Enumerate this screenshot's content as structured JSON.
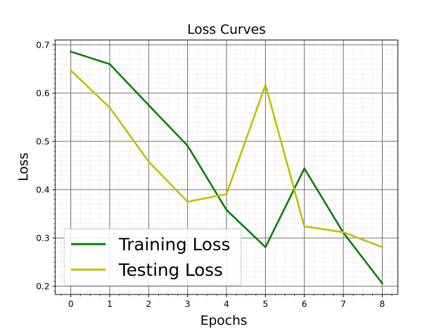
{
  "chart_data": {
    "type": "line",
    "title": "Loss Curves",
    "xlabel": "Epochs",
    "ylabel": "Loss",
    "x": [
      0,
      1,
      2,
      3,
      4,
      5,
      6,
      7,
      8
    ],
    "xlim": [
      -0.4,
      8.4
    ],
    "ylim": [
      0.183,
      0.71
    ],
    "xticks": [
      "0",
      "1",
      "2",
      "3",
      "4",
      "5",
      "6",
      "7",
      "8"
    ],
    "yticks": [
      "0.2",
      "0.3",
      "0.4",
      "0.5",
      "0.6",
      "0.7"
    ],
    "grid": "major and minor",
    "legend_position": "lower-left",
    "series": [
      {
        "name": "Training Loss",
        "color": "#008000",
        "values": [
          0.686,
          0.66,
          0.575,
          0.491,
          0.358,
          0.281,
          0.444,
          0.311,
          0.206
        ]
      },
      {
        "name": "Testing Loss",
        "color": "#bfbf00",
        "values": [
          0.647,
          0.57,
          0.458,
          0.375,
          0.391,
          0.617,
          0.324,
          0.312,
          0.281
        ]
      }
    ]
  }
}
